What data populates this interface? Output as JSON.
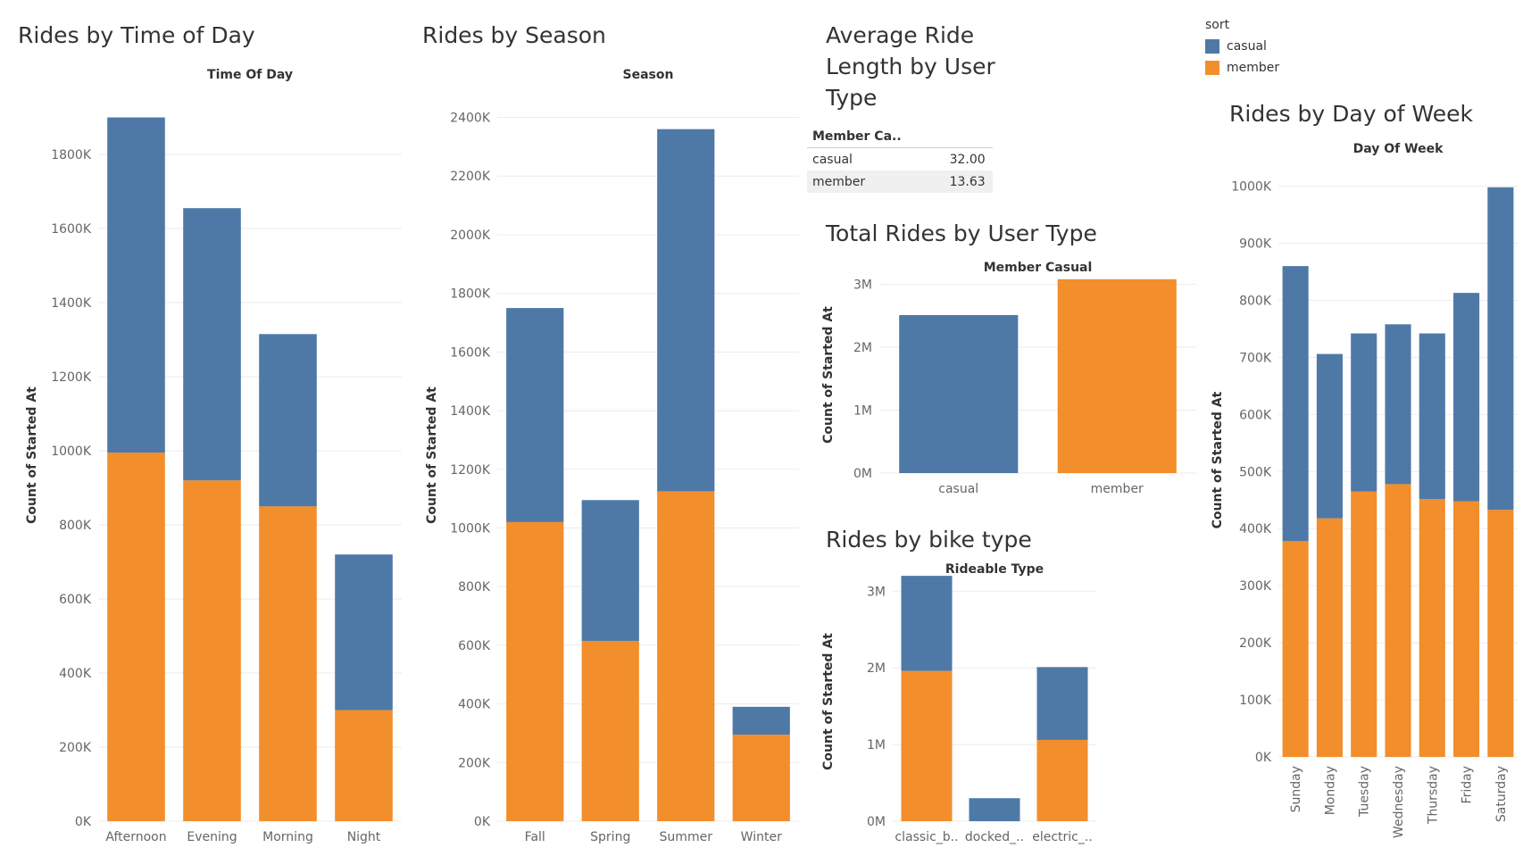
{
  "colors": {
    "casual": "#4e79a7",
    "member": "#f28e2b"
  },
  "legend": {
    "title": "sort",
    "items": [
      {
        "label": "casual",
        "color": "#4e79a7"
      },
      {
        "label": "member",
        "color": "#f28e2b"
      }
    ]
  },
  "avg_table": {
    "title": "Average Ride Length by User Type",
    "header": "Member Ca..",
    "rows": [
      {
        "label": "casual",
        "value": "32.00"
      },
      {
        "label": "member",
        "value": "13.63"
      }
    ]
  },
  "chart_data": [
    {
      "type": "bar",
      "title": "Rides by Time of Day",
      "header": "Time Of Day",
      "ylabel": "Count of Started At",
      "stacked": true,
      "categories": [
        "Afternoon",
        "Evening",
        "Morning",
        "Night"
      ],
      "series": [
        {
          "name": "member",
          "values": [
            995000,
            920000,
            850000,
            300000
          ]
        },
        {
          "name": "casual",
          "values": [
            905000,
            735000,
            465000,
            420000
          ]
        }
      ],
      "ylim": [
        0,
        1900000
      ],
      "yticks": [
        0,
        200000,
        400000,
        600000,
        800000,
        1000000,
        1200000,
        1400000,
        1600000,
        1800000
      ],
      "yticklabels": [
        "0K",
        "200K",
        "400K",
        "600K",
        "800K",
        "1000K",
        "1200K",
        "1400K",
        "1600K",
        "1800K"
      ],
      "grid": true
    },
    {
      "type": "bar",
      "title": "Rides by Season",
      "header": "Season",
      "ylabel": "Count of Started At",
      "stacked": true,
      "categories": [
        "Fall",
        "Spring",
        "Summer",
        "Winter"
      ],
      "series": [
        {
          "name": "member",
          "values": [
            1020000,
            615000,
            1125000,
            295000
          ]
        },
        {
          "name": "casual",
          "values": [
            730000,
            480000,
            1235000,
            95000
          ]
        }
      ],
      "ylim": [
        0,
        2400000
      ],
      "yticks": [
        0,
        200000,
        400000,
        600000,
        800000,
        1000000,
        1200000,
        1400000,
        1600000,
        1800000,
        2000000,
        2200000,
        2400000
      ],
      "yticklabels": [
        "0K",
        "200K",
        "400K",
        "600K",
        "800K",
        "1000K",
        "1200K",
        "1400K",
        "1600K",
        "1800K",
        "2000K",
        "2200K",
        "2400K"
      ],
      "grid": true
    },
    {
      "type": "bar",
      "title": "Total Rides by User Type",
      "header": "Member Casual",
      "ylabel": "Count of Started At",
      "stacked": false,
      "categories": [
        "casual",
        "member"
      ],
      "series": [
        {
          "name": "count",
          "values": [
            2510000,
            3080000
          ],
          "colors": [
            "#4e79a7",
            "#f28e2b"
          ]
        }
      ],
      "ylim": [
        0,
        3000000
      ],
      "yticks": [
        0,
        1000000,
        2000000,
        3000000
      ],
      "yticklabels": [
        "0M",
        "1M",
        "2M",
        "3M"
      ],
      "grid": true
    },
    {
      "type": "bar",
      "title": "Rides by bike type",
      "header": "Rideable Type",
      "ylabel": "Count of Started At",
      "stacked": true,
      "categories": [
        "classic_b..",
        "docked_..",
        "electric_.."
      ],
      "series": [
        {
          "name": "member",
          "values": [
            1960000,
            0,
            1060000
          ]
        },
        {
          "name": "casual",
          "values": [
            1240000,
            300000,
            950000
          ]
        }
      ],
      "ylim": [
        0,
        3000000
      ],
      "yticks": [
        0,
        1000000,
        2000000,
        3000000
      ],
      "yticklabels": [
        "0M",
        "1M",
        "2M",
        "3M"
      ],
      "grid": true
    },
    {
      "type": "bar",
      "title": "Rides by Day of Week",
      "header": "Day Of Week",
      "ylabel": "Count of Started At",
      "stacked": true,
      "categories": [
        "Sunday",
        "Monday",
        "Tuesday",
        "Wednesday",
        "Thursday",
        "Friday",
        "Saturday"
      ],
      "series": [
        {
          "name": "member",
          "values": [
            378000,
            418000,
            465000,
            478000,
            452000,
            448000,
            433000
          ]
        },
        {
          "name": "casual",
          "values": [
            482000,
            288000,
            277000,
            280000,
            290000,
            365000,
            565000
          ]
        }
      ],
      "ylim": [
        0,
        1000000
      ],
      "yticks": [
        0,
        100000,
        200000,
        300000,
        400000,
        500000,
        600000,
        700000,
        800000,
        900000,
        1000000
      ],
      "yticklabels": [
        "0K",
        "100K",
        "200K",
        "300K",
        "400K",
        "500K",
        "600K",
        "700K",
        "800K",
        "900K",
        "1000K"
      ],
      "grid": true
    }
  ]
}
